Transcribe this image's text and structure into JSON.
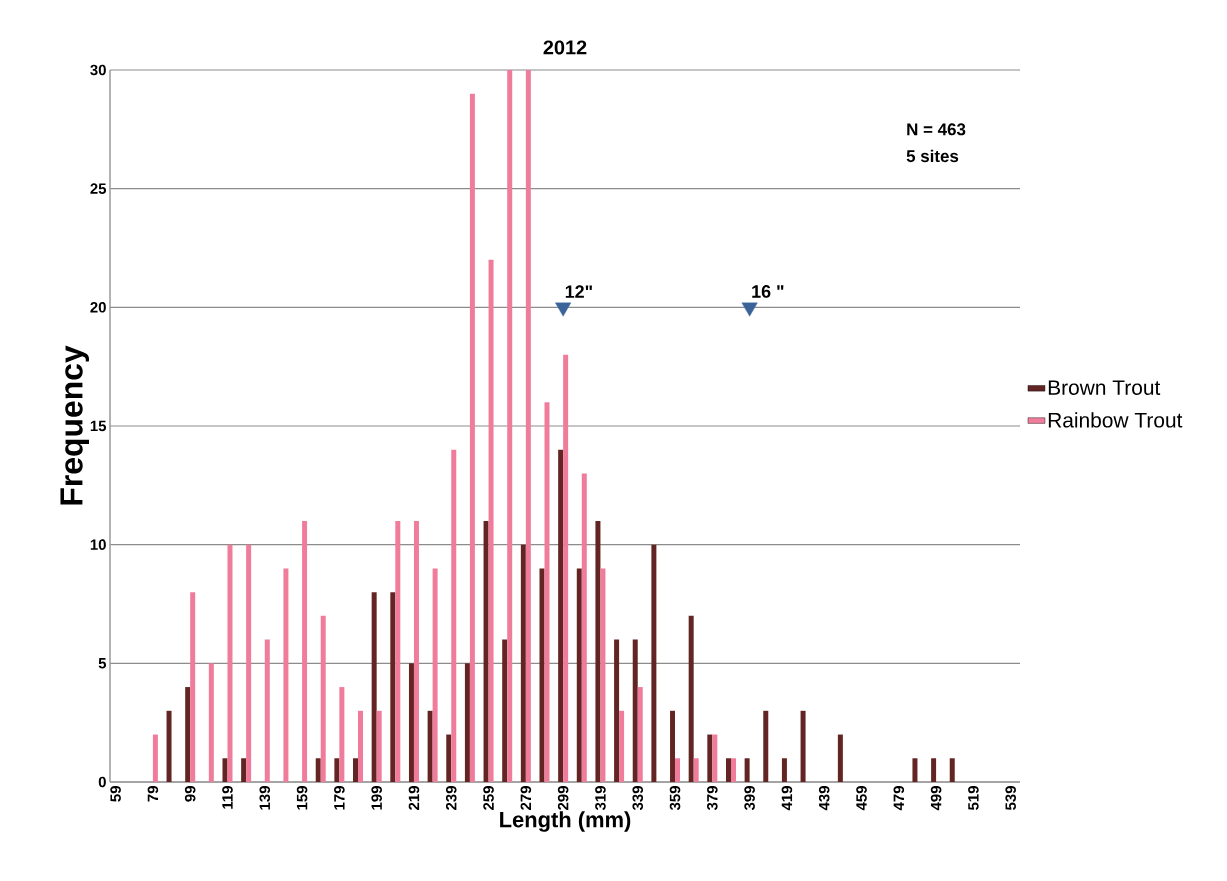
{
  "chart_data": {
    "type": "bar",
    "title": "2012",
    "xlabel": "Length (mm)",
    "ylabel": "Frequency",
    "categories": [
      "59",
      null,
      "79",
      null,
      "99",
      null,
      "119",
      null,
      "139",
      null,
      "159",
      null,
      "179",
      null,
      "199",
      null,
      "219",
      null,
      "239",
      null,
      "259",
      null,
      "279",
      null,
      "299",
      null,
      "319",
      null,
      "339",
      null,
      "359",
      null,
      "379",
      null,
      "399",
      null,
      "419",
      null,
      "439",
      null,
      "459",
      null,
      "479",
      null,
      "499",
      null,
      "519",
      null,
      "539"
    ],
    "series": [
      {
        "name": "Brown Trout",
        "color": "#632523",
        "values": [
          0,
          0,
          0,
          3,
          4,
          0,
          1,
          1,
          0,
          0,
          0,
          1,
          1,
          1,
          8,
          8,
          5,
          3,
          2,
          5,
          11,
          6,
          10,
          9,
          14,
          9,
          11,
          6,
          6,
          10,
          3,
          7,
          2,
          1,
          1,
          3,
          1,
          3,
          0,
          2,
          0,
          0,
          0,
          1,
          1,
          1,
          0,
          0,
          0
        ]
      },
      {
        "name": "Rainbow Trout",
        "color": "#f07c9c",
        "values": [
          0,
          0,
          2,
          0,
          8,
          5,
          10,
          10,
          6,
          9,
          11,
          7,
          4,
          3,
          3,
          11,
          11,
          9,
          14,
          29,
          22,
          30,
          30,
          16,
          18,
          13,
          9,
          3,
          4,
          0,
          1,
          1,
          2,
          1,
          0,
          0,
          0,
          0,
          0,
          0,
          0,
          0,
          0,
          0,
          0,
          0,
          0,
          0,
          0
        ]
      },
      {
        "type": "scatter",
        "color": "#3a6499",
        "marker": "triangle",
        "x": [
          "299",
          "399"
        ],
        "values": [
          20,
          20
        ]
      }
    ],
    "ylim": [
      0,
      30
    ],
    "yticks": [
      0,
      5,
      10,
      15,
      20,
      25,
      30
    ],
    "grid": "y",
    "legend": "right",
    "annotations": [
      {
        "text": "12\"",
        "x": "299",
        "y": 20
      },
      {
        "text": "16 \"",
        "x": "399",
        "y": 20
      },
      "N = 463",
      "5 sites"
    ]
  }
}
